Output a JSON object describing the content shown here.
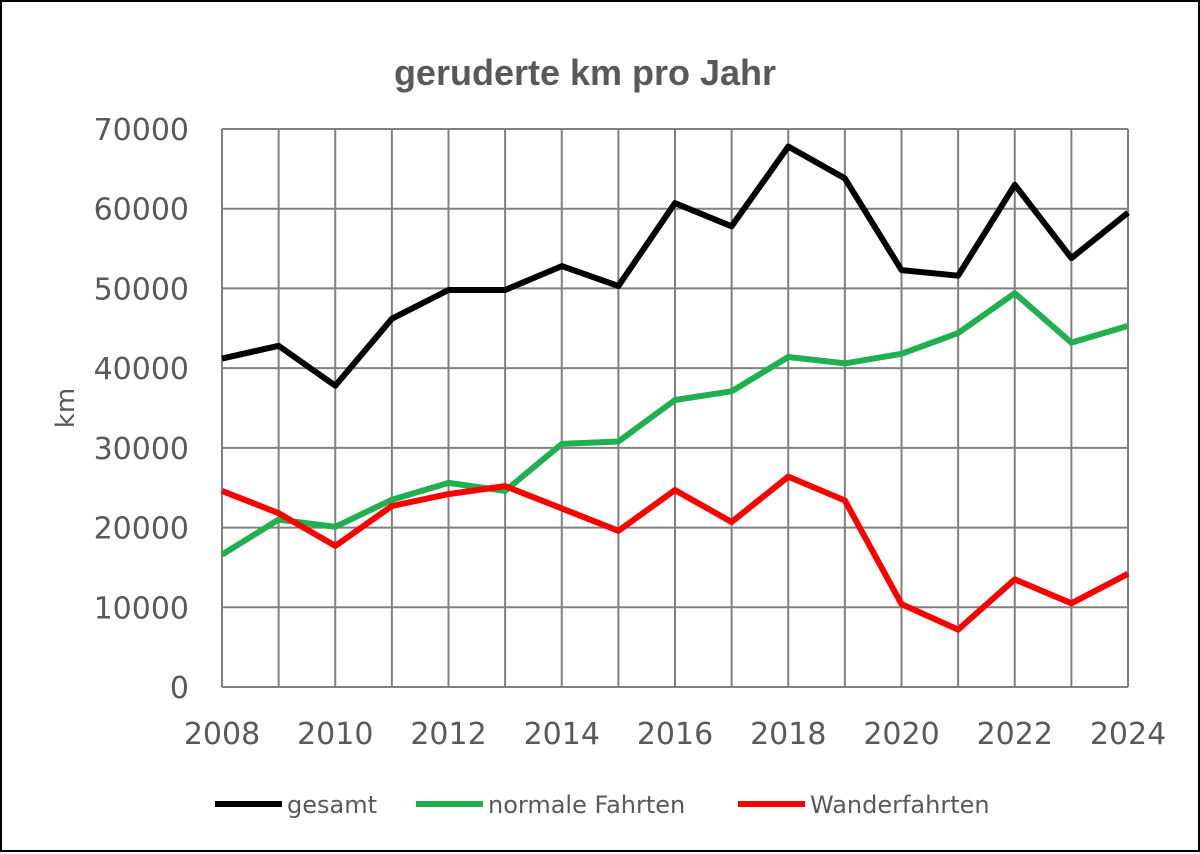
{
  "chart_data": {
    "type": "line",
    "title": "geruderte km pro Jahr",
    "xlabel": "",
    "ylabel": "km",
    "x": [
      2008,
      2009,
      2010,
      2011,
      2012,
      2013,
      2014,
      2015,
      2016,
      2017,
      2018,
      2019,
      2020,
      2021,
      2022,
      2023,
      2024
    ],
    "x_tick_labels": [
      "2008",
      "2010",
      "2012",
      "2014",
      "2016",
      "2018",
      "2020",
      "2022",
      "2024"
    ],
    "y_tick_labels": [
      "0",
      "10000",
      "20000",
      "30000",
      "40000",
      "50000",
      "60000",
      "70000"
    ],
    "xlim": [
      2008,
      2024
    ],
    "ylim": [
      0,
      70000
    ],
    "grid": true,
    "legend_position": "bottom",
    "series": [
      {
        "name": "gesamt",
        "color": "#000000",
        "values": [
          41200,
          42800,
          37800,
          46200,
          49800,
          49800,
          52800,
          50300,
          60700,
          57800,
          67800,
          63800,
          52300,
          51600,
          63000,
          53800,
          59500
        ]
      },
      {
        "name": "normale Fahrten",
        "color": "#1fb04f",
        "values": [
          16600,
          21000,
          20100,
          23500,
          25600,
          24600,
          30500,
          30800,
          36000,
          37100,
          41400,
          40600,
          41800,
          44400,
          49400,
          43200,
          45300
        ]
      },
      {
        "name": "Wanderfahrten",
        "color": "#ff0000",
        "values": [
          24600,
          21800,
          17700,
          22700,
          24200,
          25200,
          22400,
          19600,
          24700,
          20700,
          26400,
          23400,
          10400,
          7200,
          13500,
          10500,
          14200
        ]
      }
    ]
  }
}
